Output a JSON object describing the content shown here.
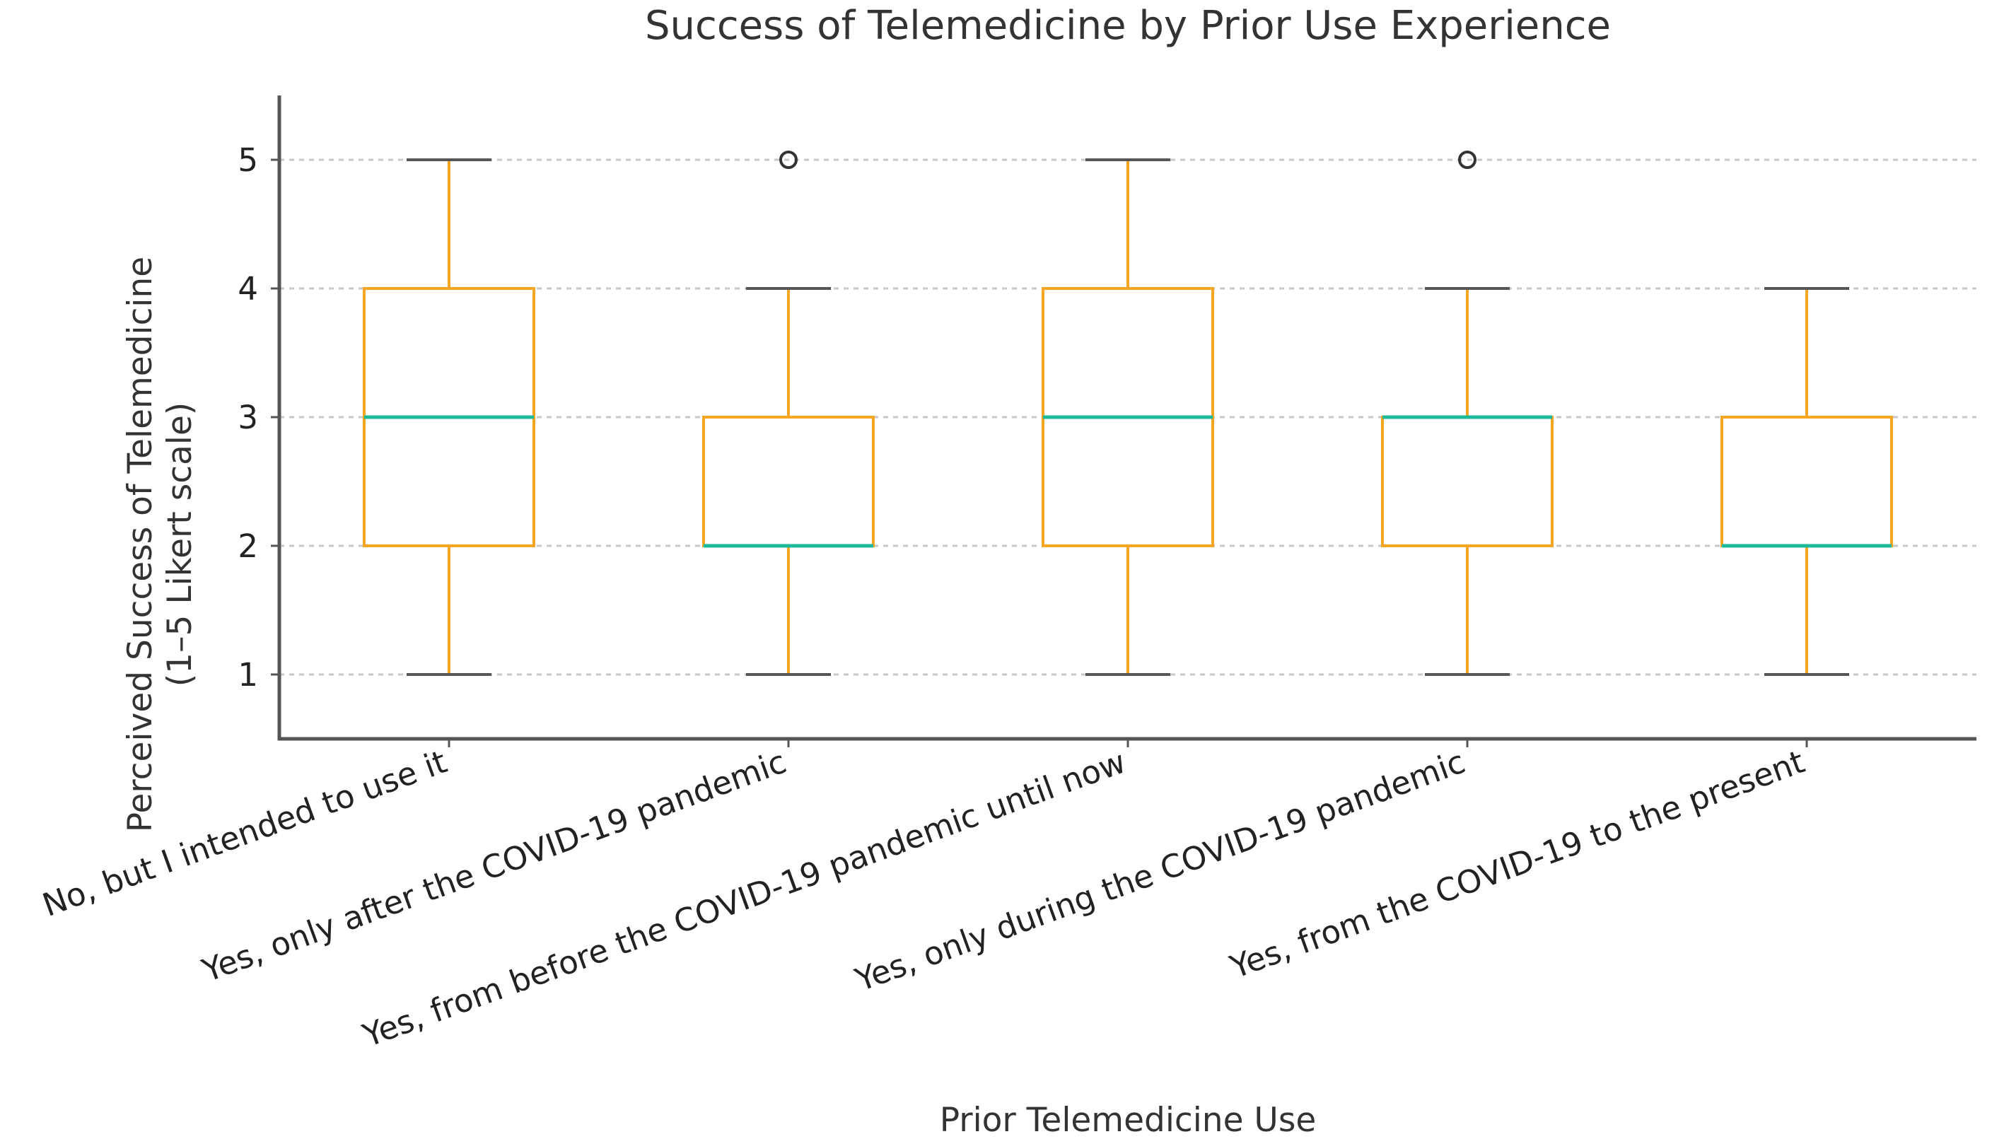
{
  "chart_data": {
    "type": "box",
    "title": "Success of Telemedicine by Prior Use Experience",
    "xlabel": "Prior Telemedicine Use",
    "ylabel": [
      "Perceived Success of Telemedicine",
      "(1–5 Likert scale)"
    ],
    "ylim": [
      0.5,
      5.5
    ],
    "yticks": [
      1,
      2,
      3,
      4,
      5
    ],
    "grid": "horizontal dashed",
    "colors": {
      "box": "#F5A623",
      "median": "#1BB89A",
      "caps": "#555555",
      "flier": "#333333"
    },
    "categories": [
      "No, but I intended to use it",
      "Yes, only after the COVID-19 pandemic",
      "Yes, from before the COVID-19 pandemic until now",
      "Yes, only during the COVID-19 pandemic",
      "Yes, from the COVID-19 to the present"
    ],
    "boxes": [
      {
        "min": 1,
        "q1": 2,
        "median": 3,
        "q3": 4,
        "max": 5,
        "outliers": []
      },
      {
        "min": 1,
        "q1": 2,
        "median": 2,
        "q3": 3,
        "max": 4,
        "outliers": [
          5
        ]
      },
      {
        "min": 1,
        "q1": 2,
        "median": 3,
        "q3": 4,
        "max": 5,
        "outliers": []
      },
      {
        "min": 1,
        "q1": 2,
        "median": 3,
        "q3": 3,
        "max": 4,
        "outliers": [
          5
        ]
      },
      {
        "min": 1,
        "q1": 2,
        "median": 2,
        "q3": 3,
        "max": 4,
        "outliers": []
      }
    ]
  }
}
